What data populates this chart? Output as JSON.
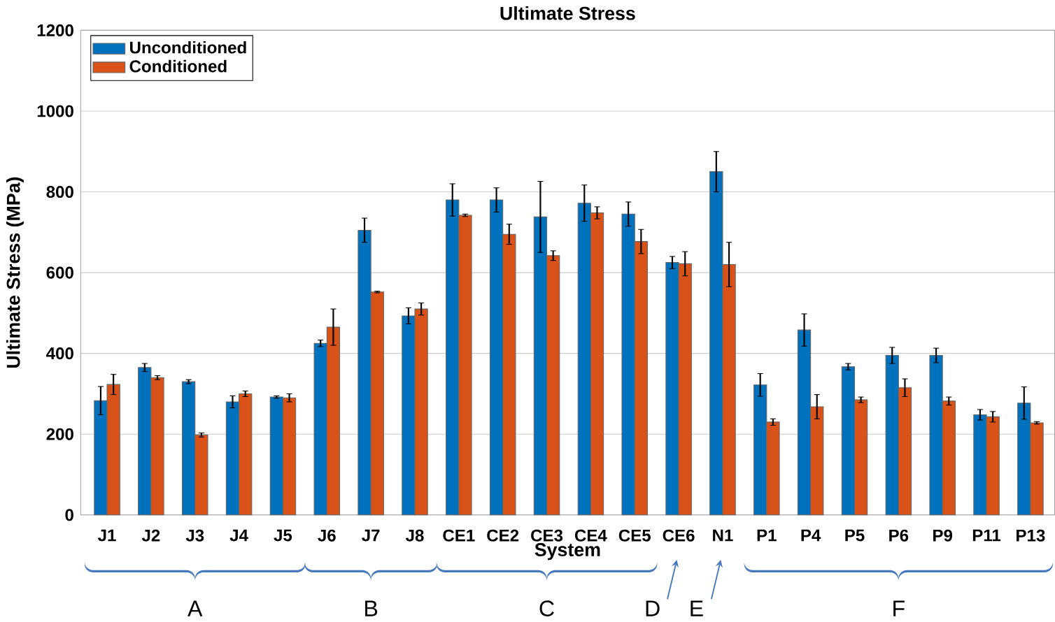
{
  "chart_data": {
    "type": "bar",
    "title": "Ultimate Stress",
    "xlabel": "System",
    "ylabel": "Ultimate Stress (MPa)",
    "categories": [
      "J1",
      "J2",
      "J3",
      "J4",
      "J5",
      "J6",
      "J7",
      "J8",
      "CE1",
      "CE2",
      "CE3",
      "CE4",
      "CE5",
      "CE6",
      "N1",
      "P1",
      "P4",
      "P5",
      "P6",
      "P9",
      "P11",
      "P13"
    ],
    "series": [
      {
        "name": "Unconditioned",
        "color": "#0072bd",
        "values": [
          283,
          365,
          330,
          280,
          292,
          425,
          705,
          493,
          780,
          780,
          738,
          772,
          745,
          625,
          850,
          322,
          458,
          367,
          395,
          395,
          248,
          277
        ],
        "errors": [
          35,
          10,
          5,
          15,
          3,
          8,
          30,
          20,
          40,
          30,
          88,
          45,
          30,
          15,
          50,
          28,
          40,
          8,
          20,
          18,
          13,
          40
        ]
      },
      {
        "name": "Conditioned",
        "color": "#d95319",
        "values": [
          323,
          340,
          198,
          300,
          290,
          465,
          552,
          510,
          742,
          695,
          642,
          748,
          677,
          622,
          620,
          230,
          268,
          285,
          315,
          282,
          243,
          228
        ],
        "errors": [
          25,
          5,
          5,
          7,
          10,
          45,
          2,
          15,
          3,
          25,
          12,
          15,
          30,
          30,
          55,
          8,
          30,
          7,
          22,
          10,
          13,
          3
        ]
      }
    ],
    "ylim": [
      0,
      1200
    ],
    "yticks": [
      0,
      200,
      400,
      600,
      800,
      1000,
      1200
    ],
    "grid": "y",
    "legend": "top left",
    "annotations": [
      "A",
      "B",
      "C",
      "D",
      "E",
      "F"
    ]
  }
}
